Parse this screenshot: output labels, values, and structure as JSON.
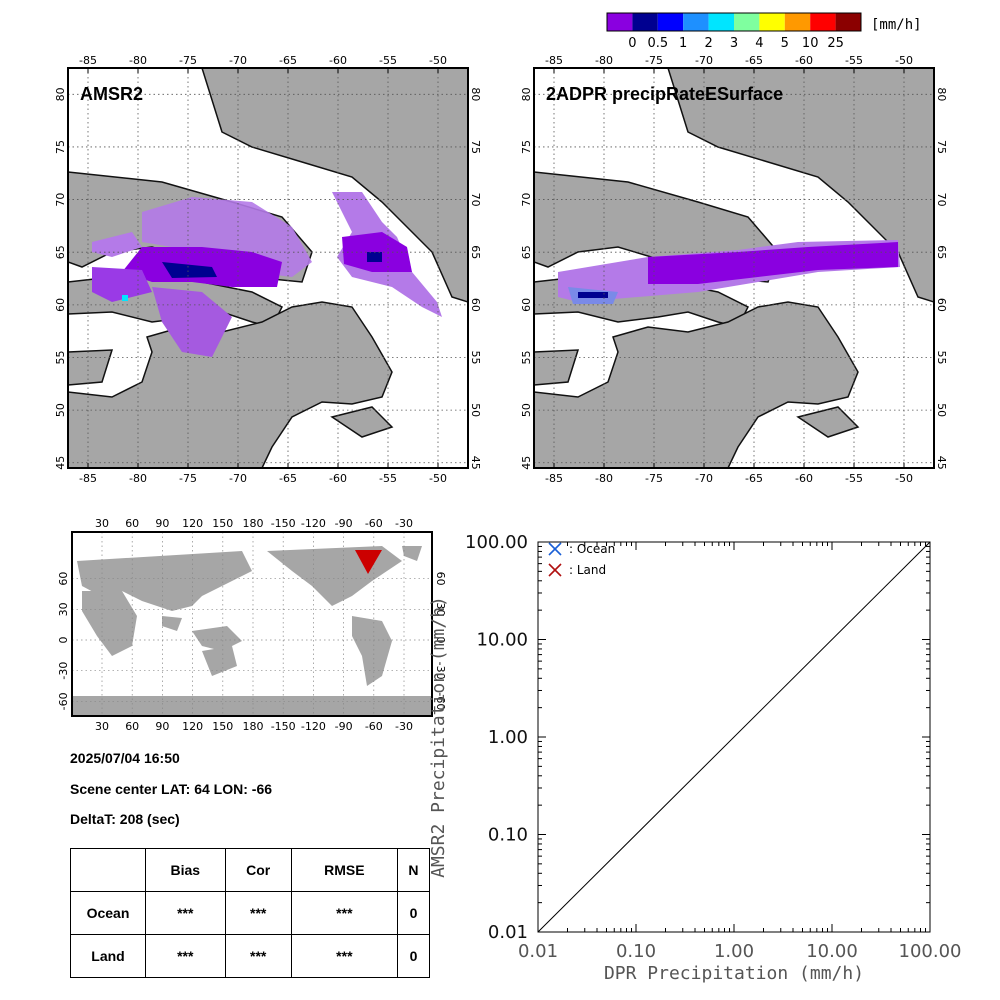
{
  "colorbar": {
    "unit": "[mm/h]",
    "colors": [
      "#8a00e0",
      "#000090",
      "#0000ff",
      "#1e90ff",
      "#00e5ff",
      "#7fff9f",
      "#ffff00",
      "#ff9900",
      "#ff0000",
      "#8b0000"
    ],
    "labels": [
      "0",
      "0.5",
      "1",
      "2",
      "3",
      "4",
      "5",
      "10",
      "25"
    ]
  },
  "maps": {
    "lon_ticks": [
      "-85",
      "-80",
      "-75",
      "-70",
      "-65",
      "-60",
      "-55",
      "-50"
    ],
    "lat_ticks": [
      "80",
      "75",
      "70",
      "65",
      "60",
      "55",
      "50",
      "45"
    ],
    "left_title": "AMSR2",
    "right_title": "2ADPR precipRateESurface"
  },
  "globe": {
    "lon_ticks": [
      "30",
      "60",
      "90",
      "120",
      "150",
      "180",
      "-150",
      "-120",
      "-90",
      "-60",
      "-30"
    ],
    "lat_ticks": [
      "60",
      "30",
      "0",
      "-30",
      "-60"
    ],
    "marker_color": "#cc0000"
  },
  "info": {
    "datetime": "2025/07/04 16:50",
    "scene_center": "Scene center LAT: 64   LON: -66",
    "delta_t": "DeltaT:  208 (sec)"
  },
  "stats_table": {
    "headers": [
      "Bias",
      "Cor",
      "RMSE",
      "N"
    ],
    "rows": [
      {
        "label": "Ocean",
        "values": [
          "***",
          "***",
          "***",
          "0"
        ]
      },
      {
        "label": "Land",
        "values": [
          "***",
          "***",
          "***",
          "0"
        ]
      }
    ]
  },
  "chart_data": {
    "type": "scatter",
    "xlabel": "DPR Precipitation (mm/h)",
    "ylabel": "AMSR2 Precipitation (mm/h)",
    "x_scale": "log",
    "y_scale": "log",
    "xlim": [
      0.01,
      100
    ],
    "ylim": [
      0.01,
      100
    ],
    "x_ticks": [
      "0.01",
      "0.10",
      "1.00",
      "10.00",
      "100.00"
    ],
    "y_ticks": [
      "0.01",
      "0.10",
      "1.00",
      "10.00",
      "100.00"
    ],
    "series": [
      {
        "name": ": Ocean",
        "marker": "x",
        "color": "#1a5fd6",
        "points": []
      },
      {
        "name": ": Land",
        "marker": "x",
        "color": "#b01010",
        "points": []
      }
    ],
    "reference_line": "1:1",
    "legend_position": "top-left"
  }
}
